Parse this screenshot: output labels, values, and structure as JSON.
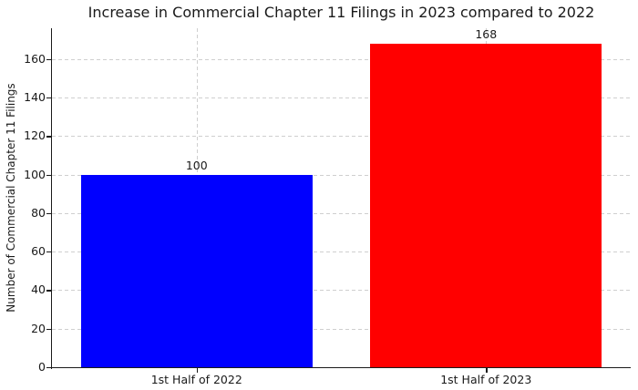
{
  "chart_data": {
    "type": "bar",
    "title": "Increase in Commercial Chapter 11 Filings in 2023 compared to 2022",
    "ylabel": "Number of Commercial Chapter 11 Filings",
    "xlabel": "",
    "categories": [
      "1st Half of 2022",
      "1st Half of 2023"
    ],
    "values": [
      100,
      168
    ],
    "value_labels": [
      "100",
      "168"
    ],
    "bar_colors": [
      "#0000ff",
      "#ff0000"
    ],
    "yticks": [
      0,
      20,
      40,
      60,
      80,
      100,
      120,
      140,
      160
    ],
    "ylim": [
      0,
      176
    ],
    "grid": {
      "style": "dashed",
      "color": "#cfcfcf",
      "horizontal": true,
      "vertical": true
    },
    "legend": null,
    "background_color": "#ffffff",
    "spine_color": "#1a1a1a"
  }
}
